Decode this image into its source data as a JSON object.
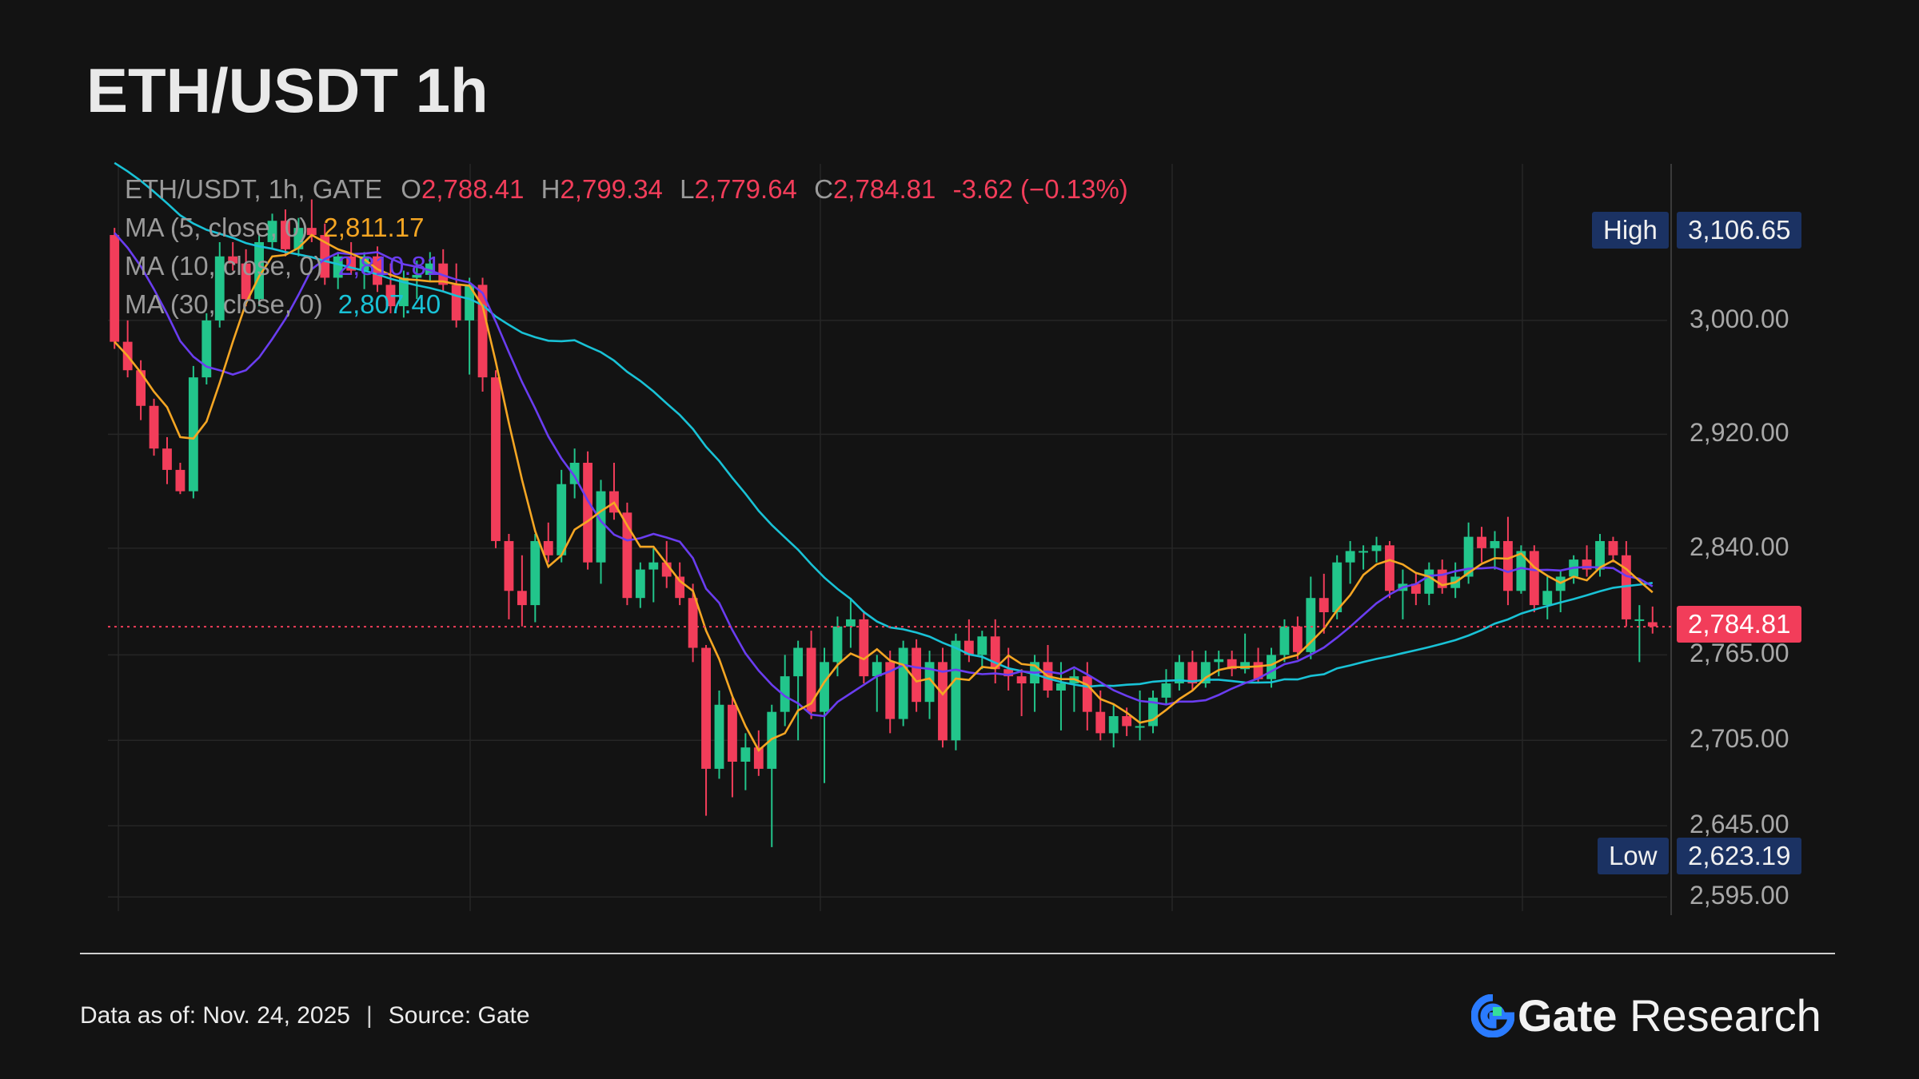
{
  "title": "ETH/USDT 1h",
  "legend": {
    "symbol": "ETH/USDT, 1h, GATE",
    "o_label": "O",
    "o_val": "2,788.41",
    "h_label": "H",
    "h_val": "2,799.34",
    "l_label": "L",
    "l_val": "2,779.64",
    "c_label": "C",
    "c_val": "2,784.81",
    "change": "-3.62 (−0.13%)",
    "ma5_label": "MA (5, close, 0)",
    "ma5_val": "2,811.17",
    "ma10_label": "MA (10, close, 0)",
    "ma10_val": "2,810.81",
    "ma30_label": "MA (30, close, 0)",
    "ma30_val": "2,807.40"
  },
  "badges": {
    "high_label": "High",
    "high_val": "3,106.65",
    "low_label": "Low",
    "low_val": "2,623.19",
    "last_val": "2,784.81"
  },
  "colors": {
    "up": "#22c58b",
    "down": "#f23d5a",
    "ma5": "#f5a623",
    "ma10": "#6a3df0",
    "ma30": "#19c2d6",
    "background": "#131313",
    "grid": "#262626"
  },
  "footer": {
    "data_as_of": "Data as of: Nov. 24, 2025",
    "source": "Source:  Gate",
    "brand_a": "Gate",
    "brand_b": " Research"
  },
  "chart_data": {
    "type": "candlestick",
    "title": "ETH/USDT 1h",
    "y_ticks": [
      3000,
      2920,
      2840,
      2765,
      2705,
      2645,
      2595
    ],
    "y_tick_labels": [
      "3,000.00",
      "2,920.00",
      "2,840.00",
      "2,765.00",
      "2,705.00",
      "2,645.00",
      "2,595.00"
    ],
    "ylim": [
      2585,
      3110
    ],
    "last_price": 2784.81,
    "grid": true,
    "candles_ohlc": [
      [
        3060,
        3065,
        2980,
        2985
      ],
      [
        2985,
        3000,
        2960,
        2965
      ],
      [
        2965,
        2972,
        2930,
        2940
      ],
      [
        2940,
        2945,
        2905,
        2910
      ],
      [
        2910,
        2918,
        2885,
        2895
      ],
      [
        2895,
        2900,
        2878,
        2880
      ],
      [
        2880,
        2968,
        2875,
        2960
      ],
      [
        2960,
        3005,
        2955,
        3000
      ],
      [
        3000,
        3055,
        2995,
        3045
      ],
      [
        3045,
        3055,
        3035,
        3040
      ],
      [
        3040,
        3050,
        3010,
        3015
      ],
      [
        3015,
        3060,
        3010,
        3055
      ],
      [
        3055,
        3075,
        3050,
        3070
      ],
      [
        3070,
        3078,
        3045,
        3050
      ],
      [
        3050,
        3072,
        3045,
        3065
      ],
      [
        3065,
        3085,
        3055,
        3060
      ],
      [
        3060,
        3068,
        3025,
        3030
      ],
      [
        3030,
        3048,
        3022,
        3045
      ],
      [
        3045,
        3055,
        3032,
        3035
      ],
      [
        3035,
        3048,
        3022,
        3045
      ],
      [
        3045,
        3052,
        3020,
        3025
      ],
      [
        3025,
        3040,
        3005,
        3010
      ],
      [
        3010,
        3035,
        3002,
        3030
      ],
      [
        3030,
        3042,
        3015,
        3032
      ],
      [
        3032,
        3048,
        3028,
        3040
      ],
      [
        3040,
        3050,
        3020,
        3025
      ],
      [
        3025,
        3040,
        2995,
        3000
      ],
      [
        3000,
        3030,
        2962,
        3025
      ],
      [
        3025,
        3030,
        2950,
        2960
      ],
      [
        2960,
        2965,
        2840,
        2845
      ],
      [
        2845,
        2850,
        2790,
        2810
      ],
      [
        2810,
        2835,
        2785,
        2800
      ],
      [
        2800,
        2850,
        2788,
        2845
      ],
      [
        2845,
        2858,
        2830,
        2835
      ],
      [
        2835,
        2895,
        2830,
        2885
      ],
      [
        2885,
        2910,
        2875,
        2900
      ],
      [
        2900,
        2908,
        2825,
        2830
      ],
      [
        2830,
        2888,
        2815,
        2880
      ],
      [
        2880,
        2900,
        2860,
        2865
      ],
      [
        2865,
        2872,
        2800,
        2805
      ],
      [
        2805,
        2830,
        2798,
        2825
      ],
      [
        2825,
        2840,
        2802,
        2830
      ],
      [
        2830,
        2845,
        2812,
        2820
      ],
      [
        2820,
        2830,
        2800,
        2805
      ],
      [
        2805,
        2815,
        2760,
        2770
      ],
      [
        2770,
        2772,
        2652,
        2685
      ],
      [
        2685,
        2740,
        2678,
        2730
      ],
      [
        2730,
        2735,
        2665,
        2690
      ],
      [
        2690,
        2710,
        2670,
        2700
      ],
      [
        2700,
        2712,
        2680,
        2685
      ],
      [
        2685,
        2730,
        2630,
        2725
      ],
      [
        2725,
        2765,
        2715,
        2750
      ],
      [
        2750,
        2775,
        2705,
        2770
      ],
      [
        2770,
        2782,
        2720,
        2725
      ],
      [
        2725,
        2770,
        2675,
        2760
      ],
      [
        2760,
        2792,
        2750,
        2785
      ],
      [
        2785,
        2805,
        2770,
        2790
      ],
      [
        2790,
        2796,
        2745,
        2750
      ],
      [
        2750,
        2765,
        2725,
        2760
      ],
      [
        2760,
        2768,
        2710,
        2720
      ],
      [
        2720,
        2775,
        2715,
        2770
      ],
      [
        2770,
        2776,
        2725,
        2732
      ],
      [
        2732,
        2768,
        2720,
        2760
      ],
      [
        2760,
        2770,
        2700,
        2705
      ],
      [
        2705,
        2780,
        2698,
        2775
      ],
      [
        2775,
        2790,
        2760,
        2765
      ],
      [
        2765,
        2782,
        2755,
        2778
      ],
      [
        2778,
        2790,
        2745,
        2755
      ],
      [
        2755,
        2770,
        2740,
        2750
      ],
      [
        2750,
        2755,
        2722,
        2745
      ],
      [
        2745,
        2765,
        2725,
        2760
      ],
      [
        2760,
        2772,
        2735,
        2740
      ],
      [
        2740,
        2760,
        2712,
        2745
      ],
      [
        2745,
        2755,
        2725,
        2750
      ],
      [
        2750,
        2760,
        2712,
        2725
      ],
      [
        2725,
        2740,
        2705,
        2710
      ],
      [
        2710,
        2730,
        2700,
        2722
      ],
      [
        2722,
        2728,
        2708,
        2715
      ],
      [
        2715,
        2740,
        2705,
        2715
      ],
      [
        2715,
        2740,
        2710,
        2735
      ],
      [
        2735,
        2755,
        2730,
        2745
      ],
      [
        2745,
        2765,
        2740,
        2760
      ],
      [
        2760,
        2768,
        2740,
        2745
      ],
      [
        2745,
        2768,
        2742,
        2760
      ],
      [
        2760,
        2768,
        2750,
        2762
      ],
      [
        2762,
        2768,
        2750,
        2755
      ],
      [
        2755,
        2780,
        2752,
        2760
      ],
      [
        2760,
        2770,
        2745,
        2748
      ],
      [
        2748,
        2770,
        2742,
        2765
      ],
      [
        2765,
        2790,
        2760,
        2785
      ],
      [
        2785,
        2792,
        2762,
        2767
      ],
      [
        2767,
        2820,
        2762,
        2805
      ],
      [
        2805,
        2822,
        2780,
        2795
      ],
      [
        2795,
        2835,
        2790,
        2830
      ],
      [
        2830,
        2845,
        2815,
        2838
      ],
      [
        2838,
        2842,
        2825,
        2838
      ],
      [
        2838,
        2848,
        2830,
        2842
      ],
      [
        2842,
        2845,
        2805,
        2810
      ],
      [
        2810,
        2825,
        2790,
        2815
      ],
      [
        2815,
        2822,
        2800,
        2808
      ],
      [
        2808,
        2830,
        2800,
        2825
      ],
      [
        2825,
        2832,
        2808,
        2812
      ],
      [
        2812,
        2830,
        2805,
        2820
      ],
      [
        2820,
        2858,
        2815,
        2848
      ],
      [
        2848,
        2855,
        2830,
        2840
      ],
      [
        2840,
        2852,
        2825,
        2845
      ],
      [
        2845,
        2862,
        2800,
        2810
      ],
      [
        2810,
        2842,
        2808,
        2838
      ],
      [
        2838,
        2842,
        2795,
        2800
      ],
      [
        2800,
        2820,
        2790,
        2810
      ],
      [
        2810,
        2825,
        2795,
        2820
      ],
      [
        2820,
        2835,
        2815,
        2832
      ],
      [
        2832,
        2842,
        2820,
        2825
      ],
      [
        2825,
        2850,
        2820,
        2845
      ],
      [
        2845,
        2848,
        2830,
        2835
      ],
      [
        2835,
        2845,
        2785,
        2790
      ],
      [
        2790,
        2800,
        2760,
        2790
      ],
      [
        2788,
        2799,
        2780,
        2785
      ]
    ]
  }
}
